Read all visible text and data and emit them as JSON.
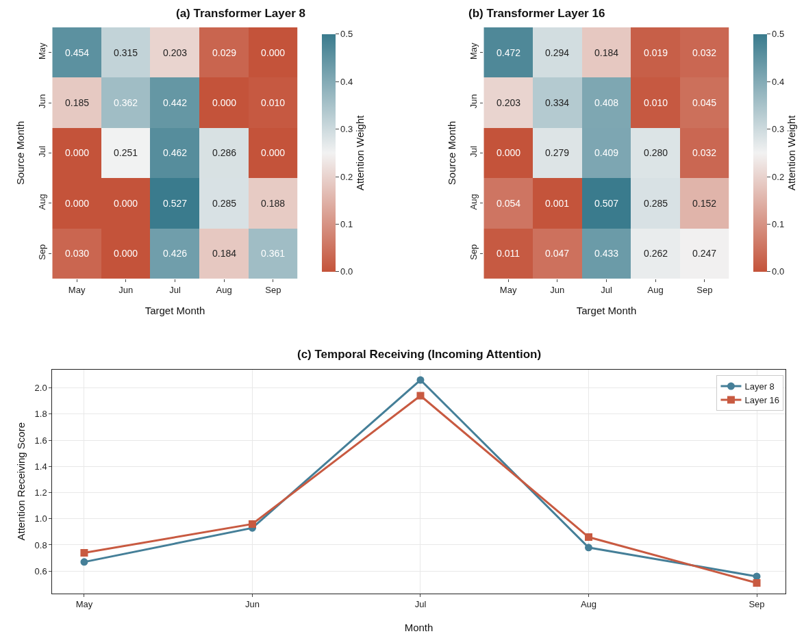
{
  "chart_data": [
    {
      "type": "heatmap",
      "title": "(a) Transformer Layer 8",
      "xlabel": "Target Month",
      "ylabel": "Source Month",
      "clabel": "Attention Weight",
      "categories": [
        "May",
        "Jun",
        "Jul",
        "Aug",
        "Sep"
      ],
      "y_categories": [
        "May",
        "Jun",
        "Jul",
        "Aug",
        "Sep"
      ],
      "cells": [
        [
          0.454,
          0.315,
          0.203,
          0.029,
          0.0
        ],
        [
          0.185,
          0.362,
          0.442,
          0.0,
          0.01
        ],
        [
          0.0,
          0.251,
          0.462,
          0.286,
          0.0
        ],
        [
          0.0,
          0.0,
          0.527,
          0.285,
          0.188
        ],
        [
          0.03,
          0.0,
          0.426,
          0.184,
          0.361
        ]
      ],
      "cell_labels": [
        [
          "0.454",
          "0.315",
          "0.203",
          "0.029",
          "0.000"
        ],
        [
          "0.185",
          "0.362",
          "0.442",
          "0.000",
          "0.010"
        ],
        [
          "0.000",
          "0.251",
          "0.462",
          "0.286",
          "0.000"
        ],
        [
          "0.000",
          "0.000",
          "0.527",
          "0.285",
          "0.188"
        ],
        [
          "0.030",
          "0.000",
          "0.426",
          "0.184",
          "0.361"
        ]
      ],
      "clim": [
        0.0,
        0.5
      ],
      "cticks": [
        {
          "value": 0.0,
          "label": "0.0"
        },
        {
          "value": 0.1,
          "label": "0.1"
        },
        {
          "value": 0.2,
          "label": "0.2"
        },
        {
          "value": 0.3,
          "label": "0.3"
        },
        {
          "value": 0.4,
          "label": "0.4"
        },
        {
          "value": 0.5,
          "label": "0.5"
        }
      ],
      "colors": [
        "#c4533a",
        "#f2f2f2",
        "#3a7b8d"
      ]
    },
    {
      "type": "heatmap",
      "title": "(b) Transformer Layer 16",
      "xlabel": "Target Month",
      "ylabel": "Source Month",
      "clabel": "Attention Weight",
      "categories": [
        "May",
        "Jun",
        "Jul",
        "Aug",
        "Sep"
      ],
      "y_categories": [
        "May",
        "Jun",
        "Jul",
        "Aug",
        "Sep"
      ],
      "cells": [
        [
          0.472,
          0.294,
          0.184,
          0.019,
          0.032
        ],
        [
          0.203,
          0.334,
          0.408,
          0.01,
          0.045
        ],
        [
          0.0,
          0.279,
          0.409,
          0.28,
          0.032
        ],
        [
          0.054,
          0.001,
          0.507,
          0.285,
          0.152
        ],
        [
          0.011,
          0.047,
          0.433,
          0.262,
          0.247
        ]
      ],
      "cell_labels": [
        [
          "0.472",
          "0.294",
          "0.184",
          "0.019",
          "0.032"
        ],
        [
          "0.203",
          "0.334",
          "0.408",
          "0.010",
          "0.045"
        ],
        [
          "0.000",
          "0.279",
          "0.409",
          "0.280",
          "0.032"
        ],
        [
          "0.054",
          "0.001",
          "0.507",
          "0.285",
          "0.152"
        ],
        [
          "0.011",
          "0.047",
          "0.433",
          "0.262",
          "0.247"
        ]
      ],
      "clim": [
        0.0,
        0.5
      ],
      "cticks": [
        {
          "value": 0.0,
          "label": "0.0"
        },
        {
          "value": 0.1,
          "label": "0.1"
        },
        {
          "value": 0.2,
          "label": "0.2"
        },
        {
          "value": 0.3,
          "label": "0.3"
        },
        {
          "value": 0.4,
          "label": "0.4"
        },
        {
          "value": 0.5,
          "label": "0.5"
        }
      ],
      "colors": [
        "#c4533a",
        "#f2f2f2",
        "#3a7b8d"
      ]
    },
    {
      "type": "line",
      "title": "(c) Temporal Receiving (Incoming Attention)",
      "xlabel": "Month",
      "ylabel": "Attention Receiving Score",
      "categories": [
        "May",
        "Jun",
        "Jul",
        "Aug",
        "Sep"
      ],
      "series": [
        {
          "name": "Layer 8",
          "color": "#457f98",
          "marker": "circle",
          "values": [
            0.67,
            0.93,
            2.06,
            0.78,
            0.56
          ]
        },
        {
          "name": "Layer 16",
          "color": "#c85a41",
          "marker": "square",
          "values": [
            0.74,
            0.96,
            1.94,
            0.86,
            0.51
          ]
        }
      ],
      "ylim": [
        0.43,
        2.14
      ],
      "yticks": [
        {
          "value": 0.6,
          "label": "0.6"
        },
        {
          "value": 0.8,
          "label": "0.8"
        },
        {
          "value": 1.0,
          "label": "1.0"
        },
        {
          "value": 1.2,
          "label": "1.2"
        },
        {
          "value": 1.4,
          "label": "1.4"
        },
        {
          "value": 1.6,
          "label": "1.6"
        },
        {
          "value": 1.8,
          "label": "1.8"
        },
        {
          "value": 2.0,
          "label": "2.0"
        }
      ],
      "grid": true,
      "legend": "top right",
      "line_style": "solid"
    }
  ]
}
